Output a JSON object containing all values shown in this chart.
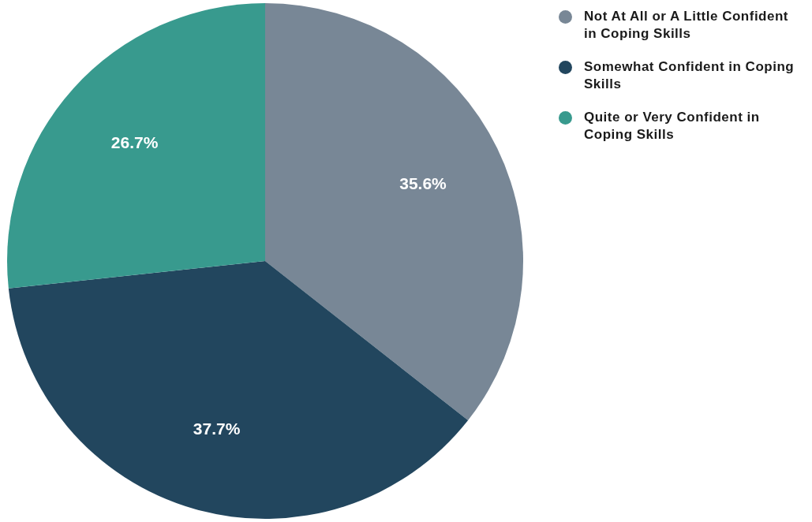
{
  "chart_data": {
    "type": "pie",
    "categories": [
      "Not At All or A Little Confident in Coping Skills",
      "Somewhat Confident in Coping Skills",
      "Quite or Very Confident in Coping Skills"
    ],
    "values": [
      35.6,
      37.7,
      26.7
    ],
    "value_labels": [
      "35.6%",
      "37.7%",
      "26.7%"
    ],
    "colors": [
      "#788796",
      "#22465e",
      "#389a8e"
    ],
    "legend": "top right"
  }
}
